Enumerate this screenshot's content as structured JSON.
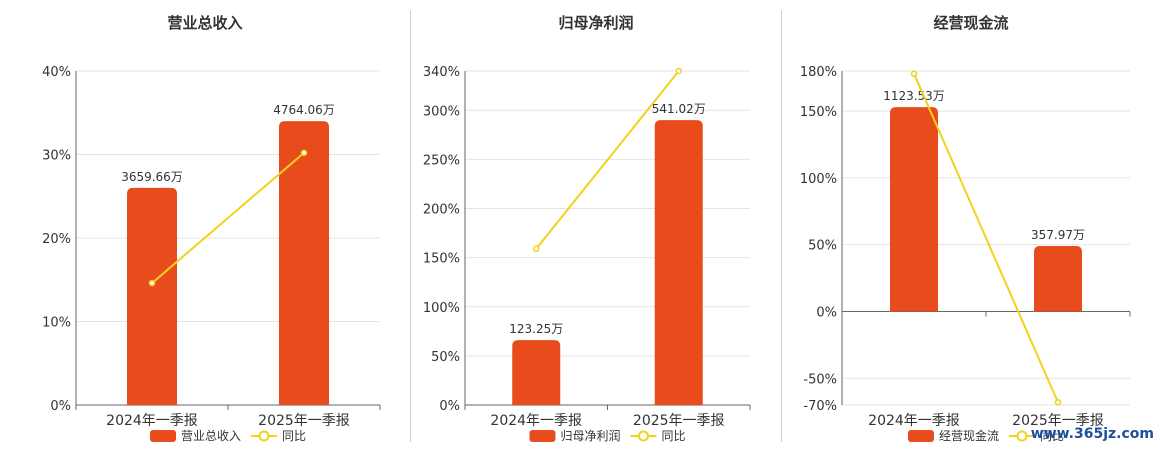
{
  "chart_data": [
    {
      "type": "bar",
      "title": "营业总收入",
      "categories": [
        "2024年一季报",
        "2025年一季报"
      ],
      "series": [
        {
          "name": "营业总收入",
          "type": "bar",
          "color": "#e84c1c",
          "values": [
            26,
            34
          ],
          "labels": [
            "3659.66万",
            "4764.06万"
          ]
        },
        {
          "name": "同比",
          "type": "line",
          "color": "#f2d21b",
          "values": [
            14.6,
            30.2
          ]
        }
      ],
      "yticks": [
        0,
        10,
        20,
        30,
        40
      ],
      "ytick_labels": [
        "0%",
        "10%",
        "20%",
        "30%",
        "40%"
      ],
      "ylim": [
        0,
        40
      ],
      "grid": true,
      "legend": "bottom"
    },
    {
      "type": "bar",
      "title": "归母净利润",
      "categories": [
        "2024年一季报",
        "2025年一季报"
      ],
      "series": [
        {
          "name": "归母净利润",
          "type": "bar",
          "color": "#e84c1c",
          "values": [
            66,
            290
          ],
          "labels": [
            "123.25万",
            "541.02万"
          ]
        },
        {
          "name": "同比",
          "type": "line",
          "color": "#f2d21b",
          "values": [
            159,
            340
          ]
        }
      ],
      "yticks": [
        0,
        50,
        100,
        150,
        200,
        250,
        300,
        340
      ],
      "ytick_labels": [
        "0%",
        "50%",
        "100%",
        "150%",
        "200%",
        "250%",
        "300%",
        "340%"
      ],
      "ylim": [
        0,
        340
      ],
      "grid": true,
      "legend": "bottom"
    },
    {
      "type": "bar",
      "title": "经营现金流",
      "categories": [
        "2024年一季报",
        "2025年一季报"
      ],
      "series": [
        {
          "name": "经营现金流",
          "type": "bar",
          "color": "#e84c1c",
          "values": [
            153,
            49
          ],
          "labels": [
            "1123.53万",
            "357.97万"
          ]
        },
        {
          "name": "同比",
          "type": "line",
          "color": "#f2d21b",
          "values": [
            178,
            -68
          ]
        }
      ],
      "yticks": [
        -70,
        -50,
        0,
        50,
        100,
        150,
        180
      ],
      "ytick_labels": [
        "-70%",
        "-50%",
        "0%",
        "50%",
        "100%",
        "150%",
        "180%"
      ],
      "ylim": [
        -70,
        180
      ],
      "grid": true,
      "legend": "bottom"
    }
  ],
  "watermark": "www.365jz.com"
}
